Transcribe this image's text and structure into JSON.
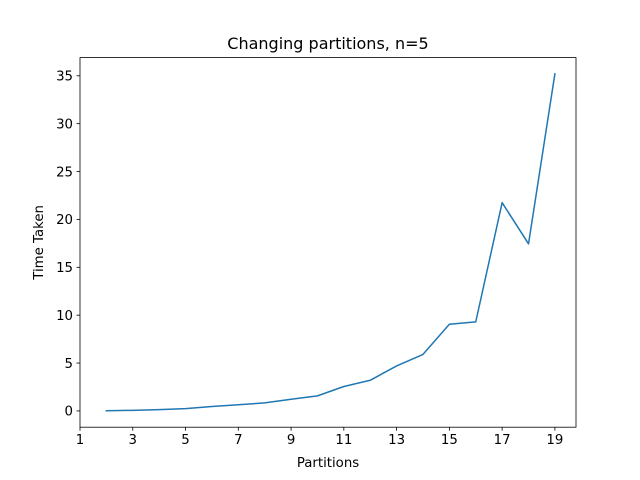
{
  "chart_data": {
    "type": "line",
    "title": "Changing partitions, n=5",
    "xlabel": "Partitions",
    "ylabel": "Time Taken",
    "xlim": [
      1,
      19.8
    ],
    "ylim": [
      -1.7,
      36.9
    ],
    "xticks": [
      1,
      3,
      5,
      7,
      9,
      11,
      13,
      15,
      17,
      19
    ],
    "yticks": [
      0,
      5,
      10,
      15,
      20,
      25,
      30,
      35
    ],
    "grid": false,
    "legend": "none",
    "series": [
      {
        "color": "#1f77b4",
        "x": [
          2,
          3,
          4,
          5,
          6,
          7,
          8,
          9,
          10,
          11,
          12,
          13,
          14,
          15,
          16,
          17,
          18,
          19
        ],
        "y": [
          0.02,
          0.06,
          0.14,
          0.24,
          0.46,
          0.64,
          0.84,
          1.22,
          1.57,
          2.55,
          3.2,
          4.7,
          5.9,
          9.05,
          9.3,
          21.75,
          17.45,
          35.2
        ]
      }
    ]
  }
}
